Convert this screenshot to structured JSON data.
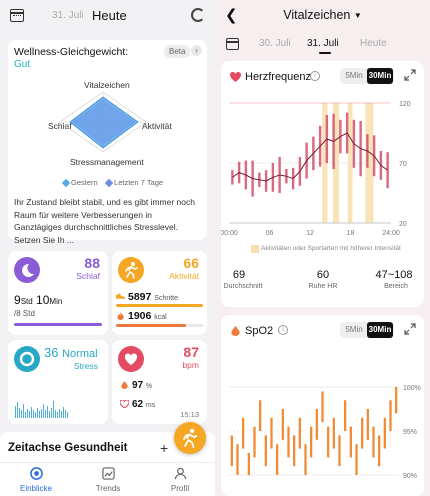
{
  "left": {
    "header": {
      "tab_prev": "31. Juli",
      "tab_now": "Heute"
    },
    "wellness": {
      "title": "Wellness-Gleichgewicht:",
      "status": "Gut",
      "beta": "Beta",
      "axes": {
        "top": "Vitalzeichen",
        "left": "Schlaf",
        "right": "Aktivität",
        "bottom": "Stressmanagement"
      },
      "legend": [
        {
          "label": "Gestern",
          "color": "#58a9e8"
        },
        {
          "label": "Letzten 7 Tage",
          "color": "#6d8de8"
        }
      ],
      "body": "Ihr Zustand bleibt stabil, und es gibt immer noch Raum für weitere Verbesserungen in Ganztägiges durchschnittliches Stresslevel. Setzen Sie Ih ..."
    },
    "sleep": {
      "score": "88",
      "label": "Schlaf",
      "hours": "9",
      "h_unit": "Std",
      "minutes": "10",
      "m_unit": "Min",
      "target": "/8 Std",
      "progress": 1.0,
      "color": "#8a5cd6"
    },
    "activity": {
      "score": "66",
      "label": "Aktivität",
      "steps": "5897",
      "steps_unit": "Schritte",
      "kcal": "1906",
      "kcal_unit": "kcal",
      "color": "#f5a623"
    },
    "stress": {
      "score": "36",
      "level": "Normal",
      "label": "Stress",
      "color": "#29a8c6"
    },
    "heart": {
      "score": "87",
      "label": "bpm",
      "spo2": "97",
      "spo2_unit": "%",
      "hrv": "62",
      "hrv_unit": "ms",
      "time": "15:13",
      "color": "#e34b63"
    },
    "timeline": {
      "title": "Zeitachse Gesundheit",
      "plus": "+"
    },
    "nav": [
      {
        "label": "Einblicke",
        "icon": "insights-icon",
        "active": true
      },
      {
        "label": "Trends",
        "icon": "trends-icon",
        "active": false
      },
      {
        "label": "Profil",
        "icon": "profile-icon",
        "active": false
      }
    ]
  },
  "right": {
    "title": "Vitalzeichen",
    "tabs": [
      {
        "label": "30. Juli"
      },
      {
        "label": "31. Juli"
      },
      {
        "label": "Heute"
      }
    ],
    "heart_rate": {
      "title": "Herzfrequenz",
      "toggle": {
        "off": "5Min",
        "on": "30Min"
      },
      "y_ticks": [
        "120",
        "70",
        "20"
      ],
      "x_ticks": [
        "00:00",
        "06",
        "12",
        "18",
        "24:00"
      ],
      "note": "Aktivitäten oder Sportarten mit höherer Intensität",
      "stats": [
        {
          "value": "69",
          "label": "Durchschnitt"
        },
        {
          "value": "60",
          "label": "Ruhe HR"
        },
        {
          "value": "47~108",
          "label": "Bereich"
        }
      ]
    },
    "spo2": {
      "title": "SpO2",
      "toggle": {
        "off": "5Min",
        "on": "30Min"
      },
      "y_ticks": [
        "100%",
        "95%",
        "90%"
      ]
    }
  },
  "chart_data": [
    {
      "type": "line",
      "title": "Herzfrequenz",
      "x": [
        "00:00",
        "01:00",
        "02:00",
        "03:00",
        "04:00",
        "05:00",
        "06:00",
        "07:00",
        "08:00",
        "09:00",
        "10:00",
        "11:00",
        "12:00",
        "13:00",
        "14:00",
        "15:00",
        "16:00",
        "17:00",
        "18:00",
        "19:00",
        "20:00",
        "21:00",
        "22:00",
        "23:00"
      ],
      "series": [
        {
          "values": [
            58,
            62,
            60,
            57,
            56,
            55,
            58,
            60,
            59,
            57,
            63,
            72,
            78,
            84,
            90,
            88,
            92,
            95,
            86,
            82,
            80,
            76,
            68,
            64
          ]
        }
      ],
      "ylim": [
        20,
        120
      ],
      "y_ticks": [
        20,
        70,
        120
      ],
      "x_ticks": [
        "00:00",
        "06",
        "12",
        "18",
        "24:00"
      ]
    },
    {
      "type": "bar",
      "title": "SpO2",
      "ylim": [
        90,
        100
      ],
      "y_ticks": [
        "90%",
        "95%",
        "100%"
      ],
      "series": [
        {
          "values": [
            93,
            92,
            95,
            91,
            94,
            97,
            93,
            95,
            92,
            96,
            94,
            93,
            95,
            92,
            94,
            96,
            98,
            94,
            95,
            93,
            97,
            94,
            92,
            95,
            96,
            94,
            93,
            95,
            97,
            99
          ]
        }
      ]
    }
  ]
}
